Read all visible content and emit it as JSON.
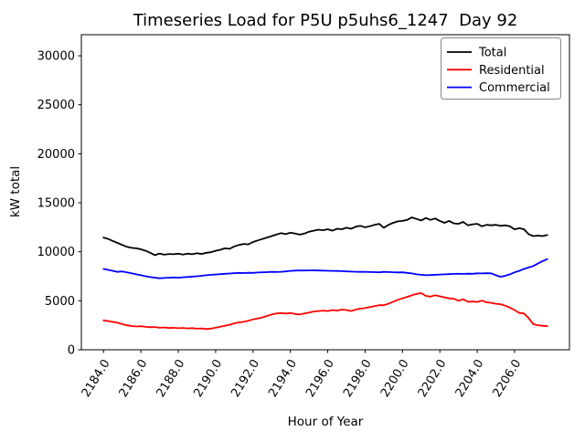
{
  "chart_data": {
    "type": "line",
    "title": "Timeseries Load for P5U p5uhs6_1247  Day 92",
    "xlabel": "Hour of Year",
    "ylabel": "kW total",
    "xlim": [
      2182.8125,
      2208.9375
    ],
    "ylim": [
      0,
      32150
    ],
    "grid": false,
    "x_ticks": [
      2184,
      2186,
      2188,
      2190,
      2192,
      2194,
      2196,
      2198,
      2200,
      2202,
      2204,
      2206
    ],
    "x_tick_labels": [
      "2184.0",
      "2186.0",
      "2188.0",
      "2190.0",
      "2192.0",
      "2194.0",
      "2196.0",
      "2198.0",
      "2200.0",
      "2202.0",
      "2204.0",
      "2206.0"
    ],
    "x_tick_rotation_deg": 58,
    "y_ticks": [
      0,
      5000,
      10000,
      15000,
      20000,
      25000,
      30000
    ],
    "y_tick_labels": [
      "0",
      "5000",
      "10000",
      "15000",
      "20000",
      "25000",
      "30000"
    ],
    "legend": {
      "position": "upper right",
      "entries": [
        "Total",
        "Residential",
        "Commercial"
      ]
    },
    "x": [
      2184.0,
      2184.25,
      2184.5,
      2184.75,
      2185.0,
      2185.25,
      2185.5,
      2185.75,
      2186.0,
      2186.25,
      2186.5,
      2186.75,
      2187.0,
      2187.25,
      2187.5,
      2187.75,
      2188.0,
      2188.25,
      2188.5,
      2188.75,
      2189.0,
      2189.25,
      2189.5,
      2189.75,
      2190.0,
      2190.25,
      2190.5,
      2190.75,
      2191.0,
      2191.25,
      2191.5,
      2191.75,
      2192.0,
      2192.25,
      2192.5,
      2192.75,
      2193.0,
      2193.25,
      2193.5,
      2193.75,
      2194.0,
      2194.25,
      2194.5,
      2194.75,
      2195.0,
      2195.25,
      2195.5,
      2195.75,
      2196.0,
      2196.25,
      2196.5,
      2196.75,
      2197.0,
      2197.25,
      2197.5,
      2197.75,
      2198.0,
      2198.25,
      2198.5,
      2198.75,
      2199.0,
      2199.25,
      2199.5,
      2199.75,
      2200.0,
      2200.25,
      2200.5,
      2200.75,
      2201.0,
      2201.25,
      2201.5,
      2201.75,
      2202.0,
      2202.25,
      2202.5,
      2202.75,
      2203.0,
      2203.25,
      2203.5,
      2203.75,
      2204.0,
      2204.25,
      2204.5,
      2204.75,
      2205.0,
      2205.25,
      2205.5,
      2205.75,
      2206.0,
      2206.25,
      2206.5,
      2206.75,
      2207.0,
      2207.25,
      2207.5,
      2207.75
    ],
    "series": [
      {
        "name": "Total",
        "color": "#000000",
        "values": [
          11450,
          11300,
          11100,
          10900,
          10700,
          10500,
          10400,
          10350,
          10250,
          10100,
          9900,
          9650,
          9820,
          9700,
          9780,
          9750,
          9800,
          9720,
          9800,
          9750,
          9850,
          9780,
          9900,
          9950,
          10100,
          10200,
          10350,
          10300,
          10550,
          10700,
          10800,
          10750,
          11000,
          11150,
          11300,
          11450,
          11600,
          11750,
          11900,
          11800,
          11950,
          11850,
          11750,
          11850,
          12050,
          12150,
          12250,
          12200,
          12300,
          12150,
          12350,
          12300,
          12450,
          12350,
          12550,
          12650,
          12500,
          12600,
          12750,
          12850,
          12450,
          12750,
          12950,
          13100,
          13150,
          13250,
          13500,
          13350,
          13200,
          13450,
          13250,
          13400,
          13150,
          12950,
          13150,
          12900,
          12850,
          13050,
          12700,
          12800,
          12850,
          12600,
          12750,
          12700,
          12750,
          12650,
          12700,
          12600,
          12290,
          12400,
          12300,
          11800,
          11600,
          11650,
          11600,
          11700
        ]
      },
      {
        "name": "Residential",
        "color": "#ff0000",
        "values": [
          3000,
          2930,
          2840,
          2760,
          2620,
          2500,
          2420,
          2380,
          2400,
          2340,
          2300,
          2320,
          2250,
          2280,
          2220,
          2250,
          2200,
          2230,
          2180,
          2210,
          2150,
          2180,
          2120,
          2160,
          2250,
          2350,
          2450,
          2550,
          2700,
          2800,
          2850,
          2950,
          3100,
          3200,
          3300,
          3450,
          3600,
          3700,
          3750,
          3700,
          3750,
          3650,
          3600,
          3700,
          3800,
          3900,
          3950,
          4000,
          3950,
          4050,
          4000,
          4100,
          4050,
          3950,
          4100,
          4200,
          4250,
          4350,
          4450,
          4550,
          4550,
          4700,
          4900,
          5100,
          5250,
          5400,
          5550,
          5700,
          5780,
          5500,
          5420,
          5570,
          5450,
          5350,
          5250,
          5200,
          5000,
          5150,
          4900,
          4920,
          4880,
          5010,
          4850,
          4790,
          4700,
          4650,
          4500,
          4300,
          4050,
          3760,
          3700,
          3240,
          2620,
          2500,
          2450,
          2400
        ]
      },
      {
        "name": "Commercial",
        "color": "#0000ff",
        "values": [
          8250,
          8150,
          8050,
          7950,
          8000,
          7900,
          7800,
          7700,
          7600,
          7500,
          7420,
          7350,
          7300,
          7320,
          7350,
          7380,
          7350,
          7400,
          7430,
          7460,
          7500,
          7550,
          7600,
          7650,
          7680,
          7720,
          7750,
          7780,
          7820,
          7850,
          7830,
          7860,
          7850,
          7880,
          7900,
          7920,
          7950,
          7940,
          7960,
          8000,
          8050,
          8080,
          8100,
          8090,
          8100,
          8110,
          8090,
          8080,
          8060,
          8050,
          8040,
          8020,
          8000,
          7980,
          7960,
          7950,
          7950,
          7930,
          7920,
          7900,
          7950,
          7930,
          7910,
          7890,
          7900,
          7850,
          7790,
          7700,
          7650,
          7600,
          7620,
          7650,
          7680,
          7700,
          7720,
          7740,
          7750,
          7740,
          7760,
          7750,
          7800,
          7790,
          7810,
          7800,
          7600,
          7450,
          7550,
          7700,
          7900,
          8050,
          8250,
          8400,
          8550,
          8800,
          9050,
          9250
        ]
      }
    ]
  }
}
